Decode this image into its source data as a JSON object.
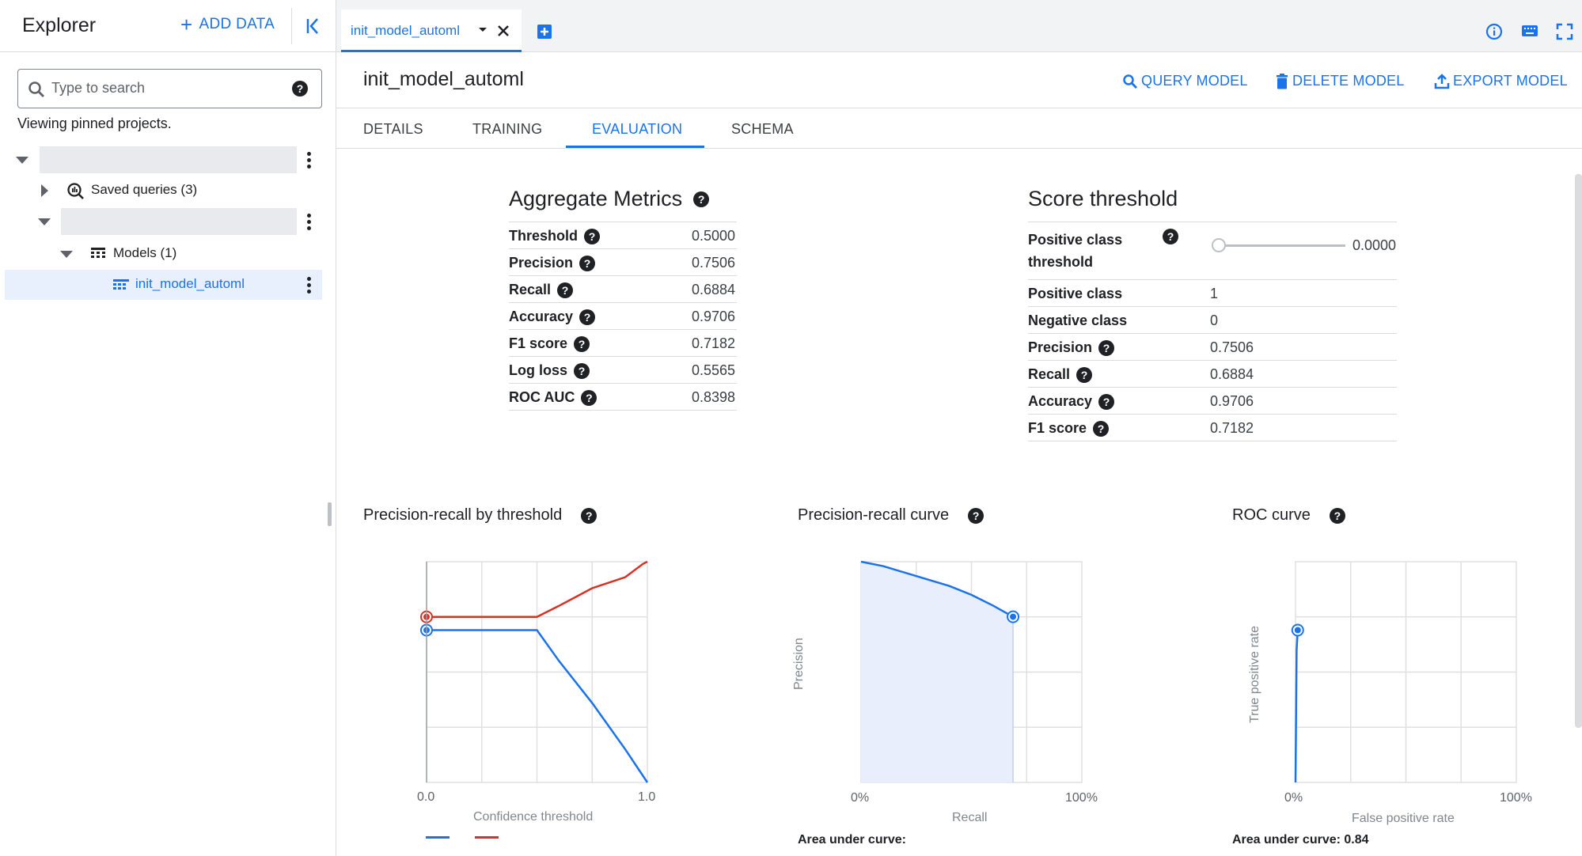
{
  "sidebar": {
    "title": "Explorer",
    "add_data": "ADD DATA",
    "search_placeholder": "Type to search",
    "viewing_text": "Viewing pinned projects.",
    "saved_queries": "Saved queries (3)",
    "models": "Models (1)",
    "model_item": "init_model_automl"
  },
  "tab": {
    "label": "init_model_automl"
  },
  "header": {
    "title": "init_model_automl",
    "query_model": "QUERY MODEL",
    "delete_model": "DELETE MODEL",
    "export_model": "EXPORT MODEL"
  },
  "subtabs": [
    "DETAILS",
    "TRAINING",
    "EVALUATION",
    "SCHEMA"
  ],
  "aggregate": {
    "title": "Aggregate Metrics",
    "rows": [
      {
        "label": "Threshold",
        "value": "0.5000"
      },
      {
        "label": "Precision",
        "value": "0.7506"
      },
      {
        "label": "Recall",
        "value": "0.6884"
      },
      {
        "label": "Accuracy",
        "value": "0.9706"
      },
      {
        "label": "F1 score",
        "value": "0.7182"
      },
      {
        "label": "Log loss",
        "value": "0.5565"
      },
      {
        "label": "ROC AUC",
        "value": "0.8398"
      }
    ]
  },
  "score": {
    "title": "Score threshold",
    "pos_threshold_label1": "Positive class",
    "pos_threshold_label2": "threshold",
    "slider_value": "0.0000",
    "slider_level": 0,
    "rows": [
      {
        "label": "Positive class",
        "value": "1",
        "help": false
      },
      {
        "label": "Negative class",
        "value": "0",
        "help": false
      },
      {
        "label": "Precision",
        "value": "0.7506",
        "help": true
      },
      {
        "label": "Recall",
        "value": "0.6884",
        "help": true
      },
      {
        "label": "Accuracy",
        "value": "0.9706",
        "help": true
      },
      {
        "label": "F1 score",
        "value": "0.7182",
        "help": true
      }
    ]
  },
  "charts": {
    "pr_threshold": {
      "title": "Precision-recall by threshold",
      "xlabel": "Confidence threshold",
      "x0": "0.0",
      "x1": "1.0"
    },
    "pr_curve": {
      "title": "Precision-recall curve",
      "xlabel": "Recall",
      "ylabel": "Precision",
      "x0": "0%",
      "x1": "100%",
      "auc": "Area under curve:"
    },
    "roc": {
      "title": "ROC curve",
      "xlabel": "False positive rate",
      "ylabel": "True positive rate",
      "x0": "0%",
      "x1": "100%",
      "auc": "Area under curve: 0.84"
    }
  },
  "chart_data": [
    {
      "type": "line",
      "title": "Precision-recall by threshold",
      "xlabel": "Confidence threshold",
      "xlim": [
        0,
        1
      ],
      "ylim": [
        0,
        1
      ],
      "series": [
        {
          "color": "#d93025",
          "x": [
            0.0,
            0.5,
            0.6,
            0.75,
            0.9,
            0.98,
            1.0
          ],
          "y": [
            0.75,
            0.75,
            0.8,
            0.88,
            0.93,
            0.99,
            1.0
          ]
        },
        {
          "color": "#1a73e8",
          "x": [
            0.0,
            0.5,
            0.6,
            0.75,
            0.9,
            1.0
          ],
          "y": [
            0.69,
            0.69,
            0.55,
            0.36,
            0.15,
            0.0
          ]
        }
      ]
    },
    {
      "type": "area",
      "title": "Precision-recall curve",
      "xlabel": "Recall",
      "ylabel": "Precision",
      "xlim": [
        0,
        100
      ],
      "ylim": [
        0,
        1
      ],
      "series": [
        {
          "color": "#1a73e8",
          "x": [
            0,
            10,
            20,
            30,
            40,
            50,
            60,
            68.84
          ],
          "y": [
            1.0,
            0.98,
            0.95,
            0.92,
            0.89,
            0.85,
            0.8,
            0.7506
          ]
        }
      ]
    },
    {
      "type": "line",
      "title": "ROC curve",
      "xlabel": "False positive rate",
      "ylabel": "True positive rate",
      "xlim": [
        0,
        100
      ],
      "ylim": [
        0,
        1
      ],
      "series": [
        {
          "color": "#1a73e8",
          "x": [
            0,
            0.5,
            1.0
          ],
          "y": [
            0,
            0.6,
            0.69
          ]
        }
      ]
    }
  ]
}
